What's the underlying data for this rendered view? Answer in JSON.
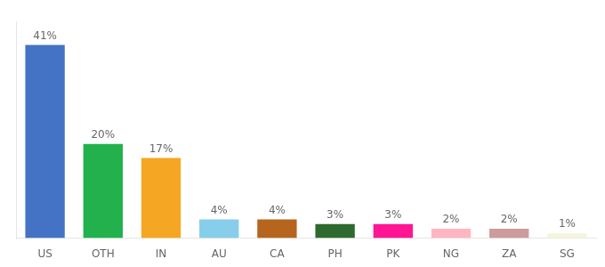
{
  "chart_data": {
    "type": "bar",
    "categories": [
      "US",
      "OTH",
      "IN",
      "AU",
      "CA",
      "PH",
      "PK",
      "NG",
      "ZA",
      "SG"
    ],
    "values": [
      41,
      20,
      17,
      4,
      4,
      3,
      3,
      2,
      2,
      1
    ],
    "value_labels": [
      "41%",
      "20%",
      "17%",
      "4%",
      "4%",
      "3%",
      "3%",
      "2%",
      "2%",
      "1%"
    ],
    "colors": [
      "#4472c4",
      "#22b14c",
      "#f5a623",
      "#87ceeb",
      "#b5651d",
      "#2d6a2d",
      "#ff1493",
      "#ffb6c1",
      "#cd9b9b",
      "#f5f5dc"
    ],
    "ylim": [
      0,
      46
    ],
    "grid": false,
    "data_labels": true,
    "tick_labels": "x"
  }
}
